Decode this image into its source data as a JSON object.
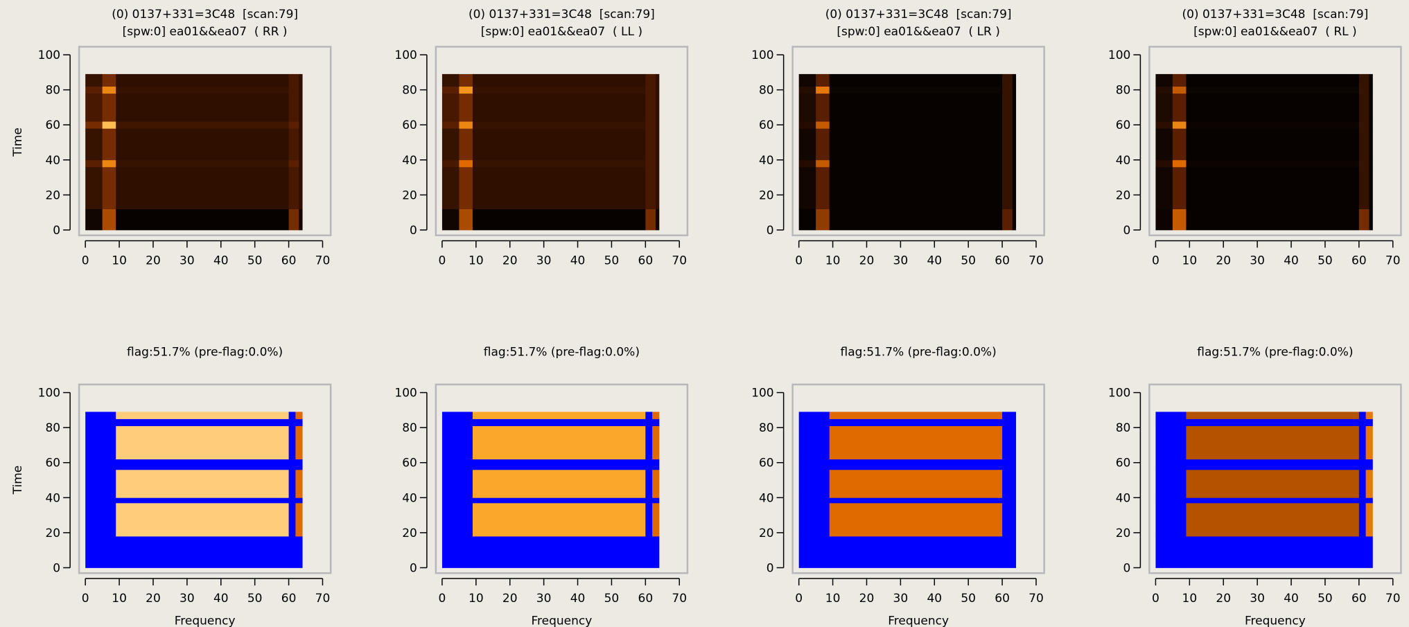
{
  "chart_data": [
    {
      "type": "heatmap",
      "title": "(0) 0137+331=3C48  [scan:79]",
      "subtitle": "[spw:0] ea01&&ea07  ( RR )",
      "ylabel": "Time",
      "xlim": [
        0,
        70
      ],
      "ylim": [
        0,
        100
      ],
      "xticks": [
        0,
        10,
        20,
        30,
        40,
        50,
        60,
        70
      ],
      "yticks": [
        0,
        20,
        40,
        60,
        80,
        100
      ],
      "colors": [
        "#000000",
        "#5a1e00",
        "#e06a00",
        "#ffb030",
        "#fff6e6"
      ],
      "flag_color": "#0000ff",
      "xbins": [
        0,
        5,
        9,
        60,
        63,
        64
      ],
      "ybins": [
        0,
        12,
        36,
        40,
        58,
        62,
        78,
        82,
        89
      ],
      "z": [
        [
          0.05,
          0.4,
          0.02,
          0.3,
          0.05
        ],
        [
          0.15,
          0.3,
          0.13,
          0.2,
          0.13
        ],
        [
          0.25,
          0.6,
          0.15,
          0.25,
          0.13
        ],
        [
          0.15,
          0.3,
          0.13,
          0.2,
          0.13
        ],
        [
          0.3,
          0.8,
          0.18,
          0.25,
          0.13
        ],
        [
          0.2,
          0.3,
          0.13,
          0.2,
          0.13
        ],
        [
          0.25,
          0.6,
          0.15,
          0.2,
          0.13
        ],
        [
          0.15,
          0.3,
          0.13,
          0.2,
          0.13
        ]
      ]
    },
    {
      "type": "heatmap",
      "title": "(0) 0137+331=3C48  [scan:79]",
      "subtitle": "[spw:0] ea01&&ea07  ( LL )",
      "xlim": [
        0,
        70
      ],
      "ylim": [
        0,
        100
      ],
      "xticks": [
        0,
        10,
        20,
        30,
        40,
        50,
        60,
        70
      ],
      "yticks": [
        0,
        20,
        40,
        60,
        80,
        100
      ],
      "colors": [
        "#000000",
        "#5a1e00",
        "#e06a00",
        "#ffb030",
        "#fff6e6"
      ],
      "flag_color": "#0000ff",
      "xbins": [
        0,
        5,
        9,
        60,
        63,
        64
      ],
      "ybins": [
        0,
        12,
        36,
        40,
        58,
        62,
        78,
        82,
        89
      ],
      "z": [
        [
          0.05,
          0.4,
          0.02,
          0.3,
          0.05
        ],
        [
          0.15,
          0.3,
          0.13,
          0.2,
          0.13
        ],
        [
          0.2,
          0.5,
          0.15,
          0.2,
          0.13
        ],
        [
          0.15,
          0.3,
          0.13,
          0.2,
          0.13
        ],
        [
          0.25,
          0.6,
          0.15,
          0.2,
          0.13
        ],
        [
          0.2,
          0.3,
          0.13,
          0.2,
          0.13
        ],
        [
          0.25,
          0.65,
          0.15,
          0.2,
          0.13
        ],
        [
          0.15,
          0.3,
          0.13,
          0.2,
          0.13
        ]
      ]
    },
    {
      "type": "heatmap",
      "title": "(0) 0137+331=3C48  [scan:79]",
      "subtitle": "[spw:0] ea01&&ea07  ( LR )",
      "xlim": [
        0,
        70
      ],
      "ylim": [
        0,
        100
      ],
      "xticks": [
        0,
        10,
        20,
        30,
        40,
        50,
        60,
        70
      ],
      "yticks": [
        0,
        20,
        40,
        60,
        80,
        100
      ],
      "colors": [
        "#000000",
        "#5a1e00",
        "#e06a00",
        "#ffb030",
        "#fff6e6"
      ],
      "flag_color": "#0000ff",
      "xbins": [
        0,
        5,
        9,
        60,
        63,
        64
      ],
      "ybins": [
        0,
        12,
        36,
        40,
        58,
        62,
        78,
        82,
        89
      ],
      "z": [
        [
          0.02,
          0.35,
          0.02,
          0.25,
          0.02
        ],
        [
          0.05,
          0.25,
          0.02,
          0.15,
          0.02
        ],
        [
          0.1,
          0.45,
          0.02,
          0.15,
          0.02
        ],
        [
          0.05,
          0.25,
          0.02,
          0.15,
          0.02
        ],
        [
          0.1,
          0.45,
          0.02,
          0.15,
          0.02
        ],
        [
          0.08,
          0.25,
          0.02,
          0.15,
          0.02
        ],
        [
          0.1,
          0.55,
          0.03,
          0.15,
          0.02
        ],
        [
          0.05,
          0.25,
          0.02,
          0.15,
          0.02
        ]
      ]
    },
    {
      "type": "heatmap",
      "title": "(0) 0137+331=3C48  [scan:79]",
      "subtitle": "[spw:0] ea01&&ea07  ( RL )",
      "xlim": [
        0,
        70
      ],
      "ylim": [
        0,
        100
      ],
      "xticks": [
        0,
        10,
        20,
        30,
        40,
        50,
        60,
        70
      ],
      "yticks": [
        0,
        20,
        40,
        60,
        80,
        100
      ],
      "colors": [
        "#000000",
        "#5a1e00",
        "#e06a00",
        "#ffb030",
        "#fff6e6"
      ],
      "flag_color": "#0000ff",
      "xbins": [
        0,
        5,
        9,
        60,
        63,
        64
      ],
      "ybins": [
        0,
        12,
        36,
        40,
        58,
        62,
        78,
        82,
        89
      ],
      "z": [
        [
          0.03,
          0.45,
          0.02,
          0.3,
          0.02
        ],
        [
          0.05,
          0.25,
          0.02,
          0.15,
          0.02
        ],
        [
          0.1,
          0.5,
          0.03,
          0.15,
          0.02
        ],
        [
          0.05,
          0.25,
          0.02,
          0.15,
          0.02
        ],
        [
          0.12,
          0.6,
          0.03,
          0.15,
          0.02
        ],
        [
          0.08,
          0.25,
          0.02,
          0.15,
          0.02
        ],
        [
          0.1,
          0.45,
          0.03,
          0.15,
          0.02
        ],
        [
          0.05,
          0.25,
          0.02,
          0.15,
          0.02
        ]
      ]
    },
    {
      "type": "heatmap",
      "title": "flag:51.7% (pre-flag:0.0%)",
      "xlabel": "Frequency",
      "ylabel": "Time",
      "xlim": [
        0,
        70
      ],
      "ylim": [
        0,
        100
      ],
      "xticks": [
        0,
        10,
        20,
        30,
        40,
        50,
        60,
        70
      ],
      "yticks": [
        0,
        20,
        40,
        60,
        80,
        100
      ],
      "colors": [
        "#000000",
        "#5a1e00",
        "#e06a00",
        "#ffb030",
        "#fff6e6"
      ],
      "flag_color": "#0000ff",
      "xbins": [
        0,
        9,
        60,
        62,
        64
      ],
      "ybins": [
        0,
        18,
        37,
        40,
        56,
        62,
        81,
        85,
        89
      ],
      "z": [
        [
          null,
          null,
          null,
          null
        ],
        [
          null,
          0.85,
          null,
          0.5
        ],
        [
          null,
          null,
          null,
          null
        ],
        [
          null,
          0.85,
          null,
          0.5
        ],
        [
          null,
          null,
          null,
          null
        ],
        [
          null,
          0.85,
          null,
          0.5
        ],
        [
          null,
          null,
          null,
          null
        ],
        [
          null,
          0.85,
          null,
          0.5
        ]
      ]
    },
    {
      "type": "heatmap",
      "title": "flag:51.7% (pre-flag:0.0%)",
      "xlabel": "Frequency",
      "xlim": [
        0,
        70
      ],
      "ylim": [
        0,
        100
      ],
      "xticks": [
        0,
        10,
        20,
        30,
        40,
        50,
        60,
        70
      ],
      "yticks": [
        0,
        20,
        40,
        60,
        80,
        100
      ],
      "colors": [
        "#000000",
        "#5a1e00",
        "#e06a00",
        "#ffb030",
        "#fff6e6"
      ],
      "flag_color": "#0000ff",
      "xbins": [
        0,
        9,
        60,
        62,
        64
      ],
      "ybins": [
        0,
        18,
        37,
        40,
        56,
        62,
        81,
        85,
        89
      ],
      "z": [
        [
          null,
          null,
          null,
          null
        ],
        [
          null,
          0.72,
          null,
          0.5
        ],
        [
          null,
          null,
          null,
          null
        ],
        [
          null,
          0.72,
          null,
          0.5
        ],
        [
          null,
          null,
          null,
          null
        ],
        [
          null,
          0.72,
          null,
          0.5
        ],
        [
          null,
          null,
          null,
          null
        ],
        [
          null,
          0.72,
          null,
          0.5
        ]
      ]
    },
    {
      "type": "heatmap",
      "title": "flag:51.7% (pre-flag:0.0%)",
      "xlabel": "Frequency",
      "xlim": [
        0,
        70
      ],
      "ylim": [
        0,
        100
      ],
      "xticks": [
        0,
        10,
        20,
        30,
        40,
        50,
        60,
        70
      ],
      "yticks": [
        0,
        20,
        40,
        60,
        80,
        100
      ],
      "colors": [
        "#000000",
        "#5a1e00",
        "#e06a00",
        "#ffb030",
        "#fff6e6"
      ],
      "flag_color": "#0000ff",
      "xbins": [
        0,
        9,
        60,
        62,
        64
      ],
      "ybins": [
        0,
        18,
        37,
        40,
        56,
        62,
        81,
        85,
        89
      ],
      "z": [
        [
          null,
          null,
          null,
          null
        ],
        [
          null,
          0.5,
          null,
          null
        ],
        [
          null,
          null,
          null,
          null
        ],
        [
          null,
          0.5,
          null,
          null
        ],
        [
          null,
          null,
          null,
          null
        ],
        [
          null,
          0.5,
          null,
          null
        ],
        [
          null,
          null,
          null,
          null
        ],
        [
          null,
          0.5,
          null,
          null
        ]
      ]
    },
    {
      "type": "heatmap",
      "title": "flag:51.7% (pre-flag:0.0%)",
      "xlabel": "Frequency",
      "xlim": [
        0,
        70
      ],
      "ylim": [
        0,
        100
      ],
      "xticks": [
        0,
        10,
        20,
        30,
        40,
        50,
        60,
        70
      ],
      "yticks": [
        0,
        20,
        40,
        60,
        80,
        100
      ],
      "colors": [
        "#000000",
        "#5a1e00",
        "#e06a00",
        "#ffb030",
        "#fff6e6"
      ],
      "flag_color": "#0000ff",
      "xbins": [
        0,
        9,
        60,
        62,
        64
      ],
      "ybins": [
        0,
        18,
        37,
        40,
        56,
        62,
        81,
        85,
        89
      ],
      "z": [
        [
          null,
          null,
          null,
          null
        ],
        [
          null,
          0.42,
          null,
          0.55
        ],
        [
          null,
          null,
          null,
          null
        ],
        [
          null,
          0.42,
          null,
          0.55
        ],
        [
          null,
          null,
          null,
          null
        ],
        [
          null,
          0.42,
          null,
          0.55
        ],
        [
          null,
          null,
          null,
          null
        ],
        [
          null,
          0.42,
          null,
          0.55
        ]
      ]
    }
  ]
}
